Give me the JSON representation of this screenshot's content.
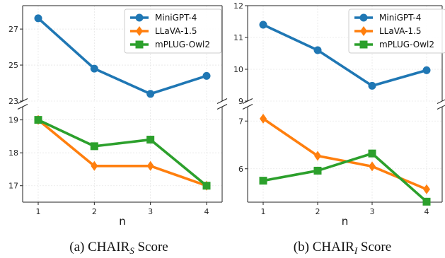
{
  "chart_data": [
    {
      "type": "line",
      "id": "chair-s",
      "caption": {
        "prefix": "(a) CHAIR",
        "sub": "S",
        "suffix": " Score"
      },
      "xlabel": "n",
      "x": [
        1,
        2,
        3,
        4
      ],
      "broken_axis": true,
      "top_panel": {
        "ylim": [
          23,
          28.3
        ],
        "yticks": [
          23,
          25,
          27
        ]
      },
      "bottom_panel": {
        "ylim": [
          16.5,
          19.4
        ],
        "yticks": [
          17,
          18,
          19
        ]
      },
      "legend_placement": "top-right",
      "grid": true,
      "series": [
        {
          "name": "MiniGPT-4",
          "values": [
            27.6,
            24.8,
            23.4,
            24.4
          ],
          "color": "#1f77b4",
          "marker": "circle",
          "panel": "top"
        },
        {
          "name": "LLaVA-1.5",
          "values": [
            19.0,
            17.6,
            17.6,
            17.0
          ],
          "color": "#ff7f0e",
          "marker": "diamond",
          "panel": "bottom"
        },
        {
          "name": "mPLUG-Owl2",
          "values": [
            19.0,
            18.2,
            18.4,
            17.0
          ],
          "color": "#2ca02c",
          "marker": "square",
          "panel": "bottom"
        }
      ]
    },
    {
      "type": "line",
      "id": "chair-i",
      "caption": {
        "prefix": "(b) CHAIR",
        "sub": "I",
        "suffix": " Score"
      },
      "xlabel": "n",
      "x": [
        1,
        2,
        3,
        4
      ],
      "broken_axis": true,
      "top_panel": {
        "ylim": [
          9,
          12
        ],
        "yticks": [
          9,
          10,
          11,
          12
        ]
      },
      "bottom_panel": {
        "ylim": [
          5.3,
          7.3
        ],
        "yticks": [
          6,
          7
        ]
      },
      "legend_placement": "top-right",
      "grid": true,
      "series": [
        {
          "name": "MiniGPT-4",
          "values": [
            11.4,
            10.6,
            9.48,
            9.97
          ],
          "color": "#1f77b4",
          "marker": "circle",
          "panel": "top"
        },
        {
          "name": "LLaVA-1.5",
          "values": [
            7.05,
            6.27,
            6.05,
            5.57
          ],
          "color": "#ff7f0e",
          "marker": "diamond",
          "panel": "bottom"
        },
        {
          "name": "mPLUG-Owl2",
          "values": [
            5.75,
            5.96,
            6.32,
            5.31
          ],
          "color": "#2ca02c",
          "marker": "square",
          "panel": "bottom"
        }
      ]
    }
  ]
}
